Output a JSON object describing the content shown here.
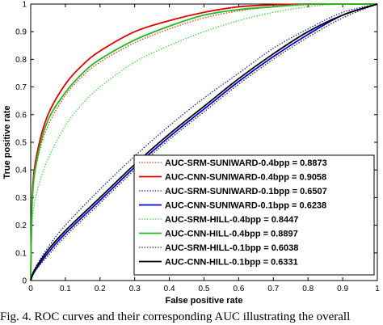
{
  "chart_data": {
    "type": "line",
    "xlabel": "False positive rate",
    "ylabel": "True positive rate",
    "xlim": [
      0,
      1
    ],
    "ylim": [
      0,
      1
    ],
    "xticks": [
      0,
      0.1,
      0.2,
      0.3,
      0.4,
      0.5,
      0.6,
      0.7,
      0.8,
      0.9,
      1
    ],
    "yticks": [
      0,
      0.1,
      0.2,
      0.3,
      0.4,
      0.5,
      0.6,
      0.7,
      0.8,
      0.9,
      1
    ],
    "xtick_labels": [
      "0",
      "0.1",
      "0.2",
      "0.3",
      "0.4",
      "0.5",
      "0.6",
      "0.7",
      "0.8",
      "0.9",
      "1"
    ],
    "ytick_labels": [
      "0",
      "0.1",
      "0.2",
      "0.3",
      "0.4",
      "0.5",
      "0.6",
      "0.7",
      "0.8",
      "0.9",
      "1"
    ],
    "legend_position": "bottom-right",
    "grid": false,
    "series": [
      {
        "name": "AUC-SRM-SUNIWARD-0.4bpp = 0.8873",
        "color": "#e8401c",
        "dash": "dotted",
        "x": [
          0,
          0.005,
          0.02,
          0.05,
          0.1,
          0.15,
          0.2,
          0.3,
          0.4,
          0.5,
          0.6,
          0.7,
          0.8,
          0.9,
          1
        ],
        "y": [
          0,
          0.3,
          0.44,
          0.56,
          0.67,
          0.74,
          0.79,
          0.86,
          0.91,
          0.95,
          0.975,
          0.99,
          0.997,
          1,
          1
        ]
      },
      {
        "name": "AUC-CNN-SUNIWARD-0.4bpp = 0.9058",
        "color": "#e00000",
        "dash": "solid",
        "x": [
          0,
          0.005,
          0.02,
          0.05,
          0.1,
          0.15,
          0.2,
          0.3,
          0.4,
          0.5,
          0.6,
          0.7,
          0.8,
          0.9,
          1
        ],
        "y": [
          0,
          0.32,
          0.47,
          0.6,
          0.71,
          0.78,
          0.83,
          0.9,
          0.94,
          0.97,
          0.99,
          0.997,
          1,
          1,
          1
        ]
      },
      {
        "name": "AUC-SRM-SUNIWARD-0.1bpp = 0.6507",
        "color": "#2222cc",
        "dash": "dotted",
        "x": [
          0,
          0.01,
          0.05,
          0.1,
          0.2,
          0.3,
          0.4,
          0.5,
          0.6,
          0.7,
          0.8,
          0.9,
          1
        ],
        "y": [
          0,
          0.04,
          0.12,
          0.2,
          0.33,
          0.45,
          0.56,
          0.66,
          0.75,
          0.84,
          0.91,
          0.97,
          1
        ]
      },
      {
        "name": "AUC-CNN-SUNIWARD-0.1bpp = 0.6238",
        "color": "#0000dd",
        "dash": "solid",
        "x": [
          0,
          0.01,
          0.05,
          0.1,
          0.2,
          0.3,
          0.4,
          0.5,
          0.6,
          0.7,
          0.8,
          0.9,
          1
        ],
        "y": [
          0,
          0.03,
          0.1,
          0.17,
          0.29,
          0.41,
          0.52,
          0.62,
          0.72,
          0.81,
          0.89,
          0.96,
          1
        ]
      },
      {
        "name": "AUC-SRM-HILL-0.4bpp = 0.8447",
        "color": "#44dd44",
        "dash": "dotted",
        "x": [
          0,
          0.005,
          0.02,
          0.05,
          0.1,
          0.15,
          0.2,
          0.3,
          0.4,
          0.5,
          0.6,
          0.7,
          0.8,
          0.9,
          1
        ],
        "y": [
          0,
          0.22,
          0.33,
          0.44,
          0.56,
          0.64,
          0.7,
          0.79,
          0.85,
          0.9,
          0.94,
          0.97,
          0.99,
          1,
          1
        ]
      },
      {
        "name": "AUC-CNN-HILL-0.4bpp = 0.8897",
        "color": "#22bb22",
        "dash": "solid",
        "x": [
          0,
          0.005,
          0.02,
          0.05,
          0.1,
          0.15,
          0.2,
          0.3,
          0.4,
          0.5,
          0.6,
          0.7,
          0.8,
          0.9,
          1
        ],
        "y": [
          0,
          0.3,
          0.45,
          0.58,
          0.68,
          0.75,
          0.8,
          0.87,
          0.92,
          0.96,
          0.98,
          0.99,
          1,
          1,
          1
        ]
      },
      {
        "name": "AUC-SRM-HILL-0.1bpp = 0.6038",
        "color": "#333333",
        "dash": "dotted",
        "x": [
          0,
          0.01,
          0.05,
          0.1,
          0.2,
          0.3,
          0.4,
          0.5,
          0.6,
          0.7,
          0.8,
          0.9,
          1
        ],
        "y": [
          0,
          0.03,
          0.09,
          0.16,
          0.28,
          0.4,
          0.51,
          0.61,
          0.71,
          0.8,
          0.88,
          0.95,
          1
        ]
      },
      {
        "name": "AUC-CNN-HILL-0.1bpp = 0.6331",
        "color": "#000000",
        "dash": "solid",
        "x": [
          0,
          0.01,
          0.05,
          0.1,
          0.2,
          0.3,
          0.4,
          0.5,
          0.6,
          0.7,
          0.8,
          0.9,
          1
        ],
        "y": [
          0,
          0.035,
          0.11,
          0.18,
          0.3,
          0.42,
          0.53,
          0.63,
          0.73,
          0.82,
          0.9,
          0.96,
          1
        ]
      }
    ]
  },
  "caption": "Fig. 4.  ROC curves and their corresponding AUC illustrating the overall"
}
